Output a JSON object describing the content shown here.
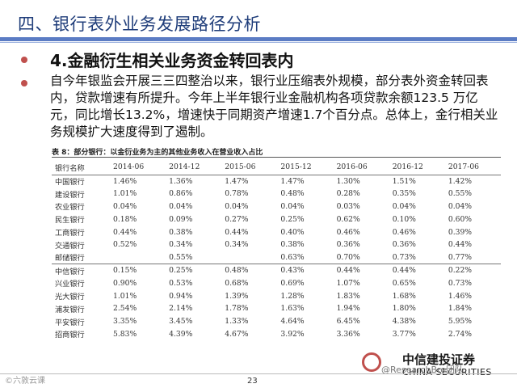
{
  "header": {
    "title": "四、银行表外业务发展路径分析"
  },
  "section": {
    "heading": "4.金融衍生相关业务资金转回表内",
    "paragraph": "自今年银监会开展三三四整治以来，银行业压缩表外规模，部分表外资金转回表内，贷款增速有所提升。今年上半年银行业金融机构各项贷款余额123.5 万亿元，同比增长13.2%，增速快于同期资产增速1.7个百分点。总体上，金行相关业务规模扩大速度得到了遏制。"
  },
  "table": {
    "caption": "表 8：部分银行：以金衍业务为主的其他业务收入在营业收入占比",
    "columns": [
      "银行名称",
      "2014-06",
      "2014-12",
      "2015-06",
      "2015-12",
      "2016-06",
      "2016-12",
      "2017-06"
    ],
    "rows": [
      [
        "中国银行",
        "1.46%",
        "1.36%",
        "1.47%",
        "1.47%",
        "1.30%",
        "1.51%",
        "1.42%"
      ],
      [
        "建设银行",
        "1.01%",
        "0.86%",
        "0.78%",
        "0.48%",
        "0.28%",
        "0.35%",
        "0.55%"
      ],
      [
        "农业银行",
        "0.04%",
        "0.04%",
        "0.04%",
        "0.04%",
        "0.03%",
        "0.04%",
        "0.04%"
      ],
      [
        "民生银行",
        "0.18%",
        "0.09%",
        "0.27%",
        "0.25%",
        "0.62%",
        "0.10%",
        "0.60%"
      ],
      [
        "工商银行",
        "0.44%",
        "0.38%",
        "0.44%",
        "0.40%",
        "0.46%",
        "0.46%",
        "0.39%"
      ],
      [
        "交通银行",
        "0.52%",
        "0.34%",
        "0.34%",
        "0.38%",
        "0.36%",
        "0.36%",
        "0.44%"
      ],
      [
        "邮储银行",
        "",
        "0.55%",
        "",
        "0.63%",
        "0.70%",
        "0.73%",
        "0.77%"
      ],
      [
        "中信银行",
        "0.15%",
        "0.25%",
        "0.48%",
        "0.43%",
        "0.44%",
        "0.44%",
        "0.22%"
      ],
      [
        "兴业银行",
        "0.90%",
        "0.53%",
        "0.68%",
        "0.69%",
        "1.07%",
        "0.65%",
        "0.73%"
      ],
      [
        "光大银行",
        "1.01%",
        "0.94%",
        "1.39%",
        "1.28%",
        "1.83%",
        "1.68%",
        "1.46%"
      ],
      [
        "浦发银行",
        "2.54%",
        "2.14%",
        "1.78%",
        "1.63%",
        "1.94%",
        "1.80%",
        "1.84%"
      ],
      [
        "平安银行",
        "3.35%",
        "3.45%",
        "1.33%",
        "4.64%",
        "6.45%",
        "4.38%",
        "5.95%"
      ],
      [
        "招商银行",
        "5.83%",
        "4.39%",
        "4.67%",
        "3.92%",
        "3.36%",
        "3.77%",
        "2.74%"
      ]
    ]
  },
  "footer": {
    "logo_cn": "中信建投证券",
    "logo_en": "CHINA SECURITIES",
    "watermark_right": "@ResearchBro团队",
    "watermark_left": "©六敦云课",
    "page_number": "23"
  }
}
